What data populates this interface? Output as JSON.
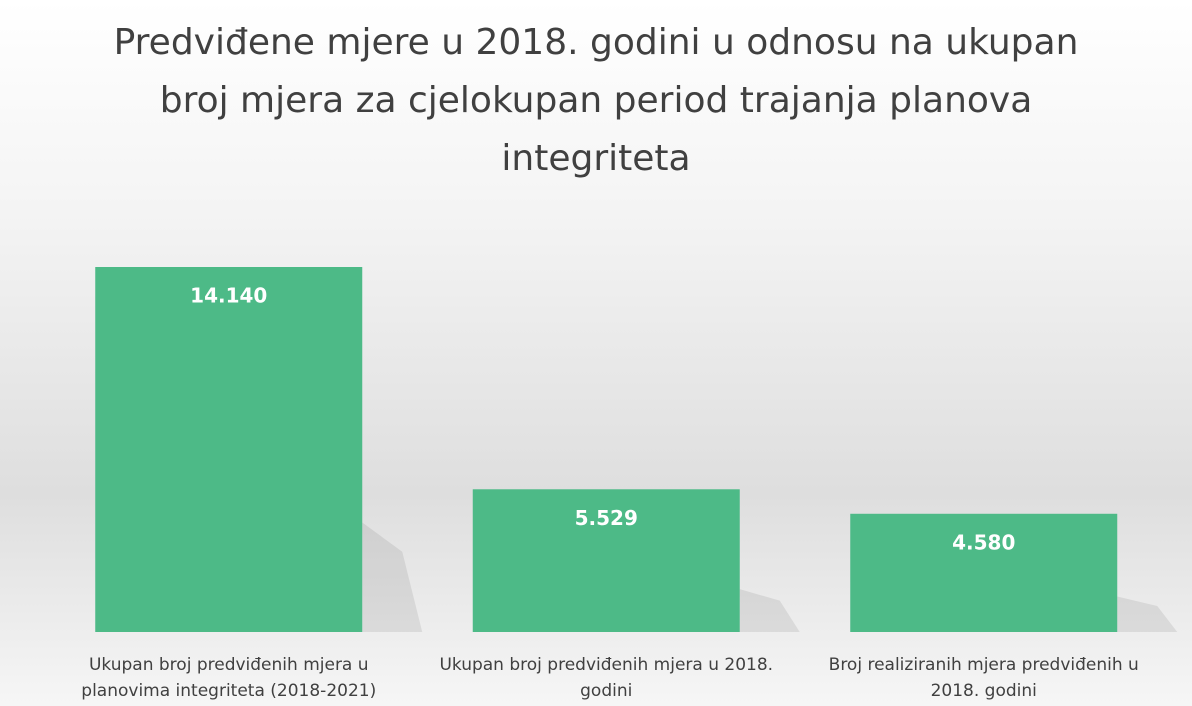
{
  "chart_data": {
    "type": "bar",
    "title": "Predviđene mjere u 2018. godini u odnosu na ukupan broj mjera za cjelokupan period trajanja planova integriteta",
    "categories": [
      "Ukupan broj predviđenih mjera u planovima integriteta (2018-2021)",
      "Ukupan broj predviđenih mjera u 2018. godini",
      "Broj realiziranih mjera predviđenih u 2018. godini"
    ],
    "values": [
      14140,
      5529,
      4580
    ],
    "value_labels": [
      "14.140",
      "5.529",
      "4.580"
    ],
    "color": "#4dba87"
  }
}
